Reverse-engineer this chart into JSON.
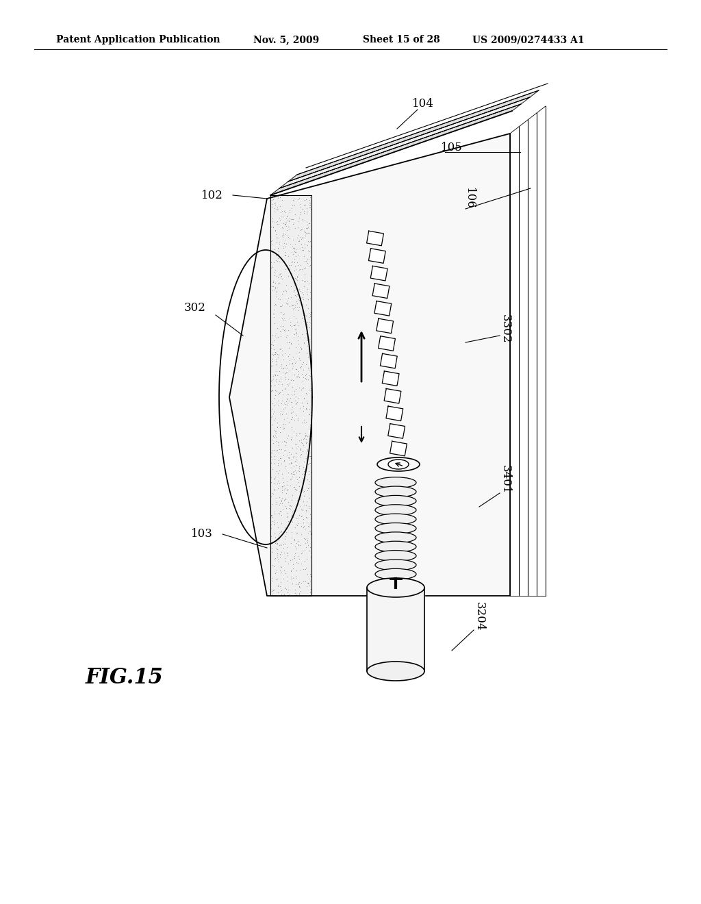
{
  "bg_color": "#ffffff",
  "header1": "Patent Application Publication",
  "header2": "Nov. 5, 2009",
  "header3": "Sheet 15 of 28",
  "header4": "US 2009/0274433 A1",
  "fig_label": "FIG.15",
  "lw_main": 1.3,
  "lw_thin": 0.8,
  "label_fontsize": 12,
  "header_fontsize": 10,
  "fig_fontsize": 22
}
